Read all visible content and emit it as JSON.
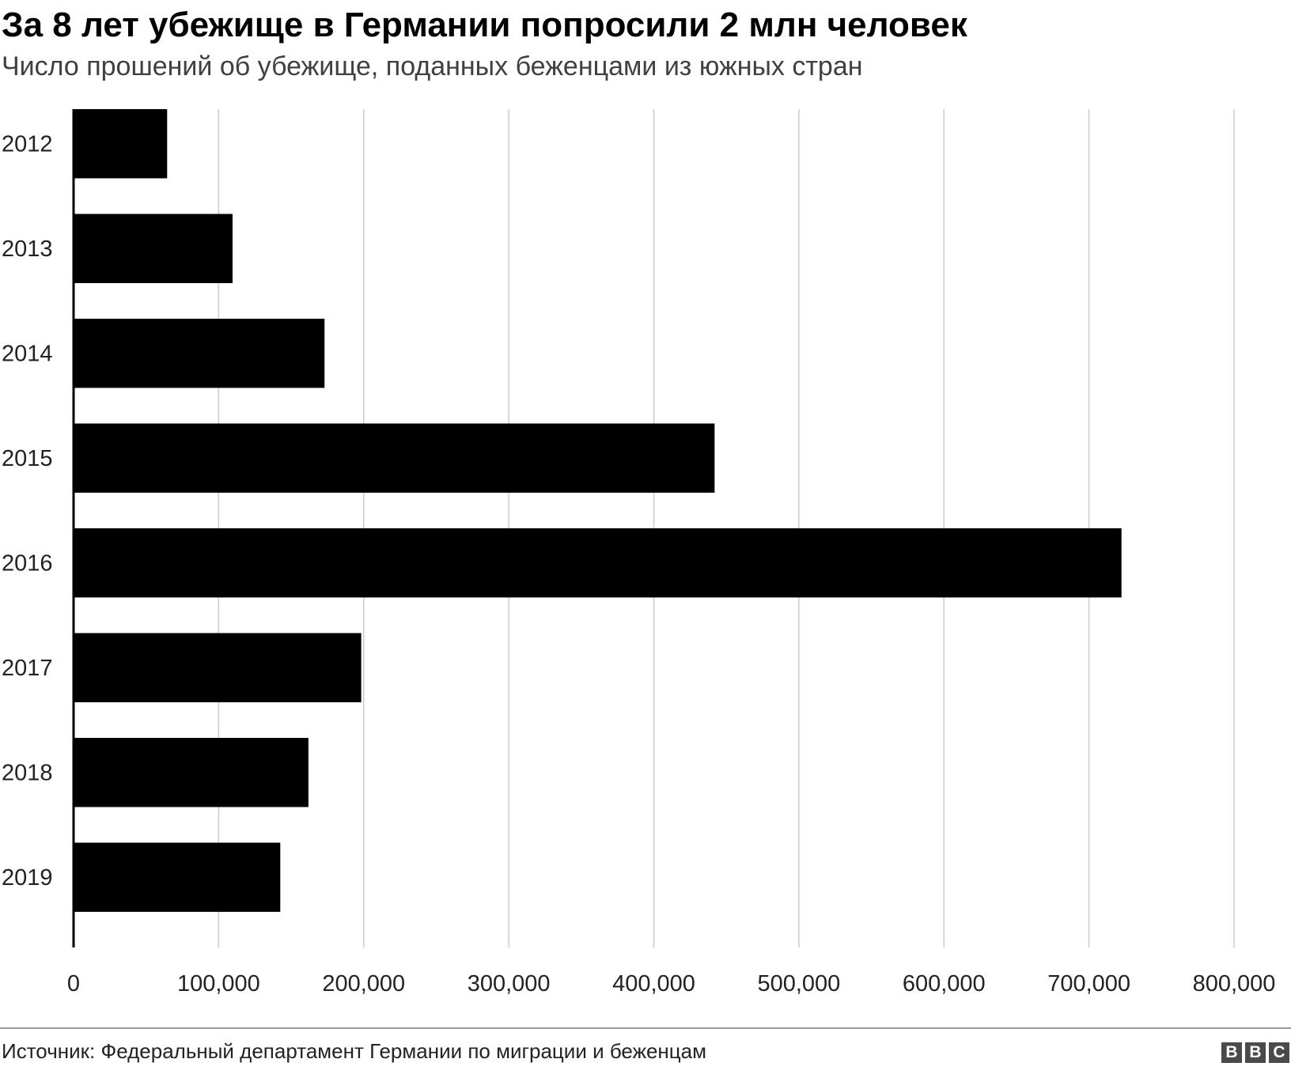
{
  "header": {
    "title": "За 8 лет убежище в Германии попросили 2 млн человек",
    "subtitle": "Число прошений об убежище, поданных беженцами из южных стран"
  },
  "footer": {
    "source": "Источник: Федеральный департамент Германии по миграции и беженцам",
    "logo_letters": [
      "B",
      "B",
      "C"
    ]
  },
  "chart_data": {
    "type": "bar",
    "orientation": "horizontal",
    "categories": [
      "2012",
      "2013",
      "2014",
      "2015",
      "2016",
      "2017",
      "2018",
      "2019"
    ],
    "values": [
      64500,
      109600,
      173000,
      441900,
      722400,
      198300,
      161900,
      142500
    ],
    "xlim": [
      0,
      800000
    ],
    "xticks": [
      0,
      100000,
      200000,
      300000,
      400000,
      500000,
      600000,
      700000,
      800000
    ],
    "xtick_labels": [
      "0",
      "100,000",
      "200,000",
      "300,000",
      "400,000",
      "500,000",
      "600,000",
      "700,000",
      "800,000"
    ],
    "grid": "vertical",
    "bar_color": "#000000",
    "grid_color": "#cccccc"
  }
}
